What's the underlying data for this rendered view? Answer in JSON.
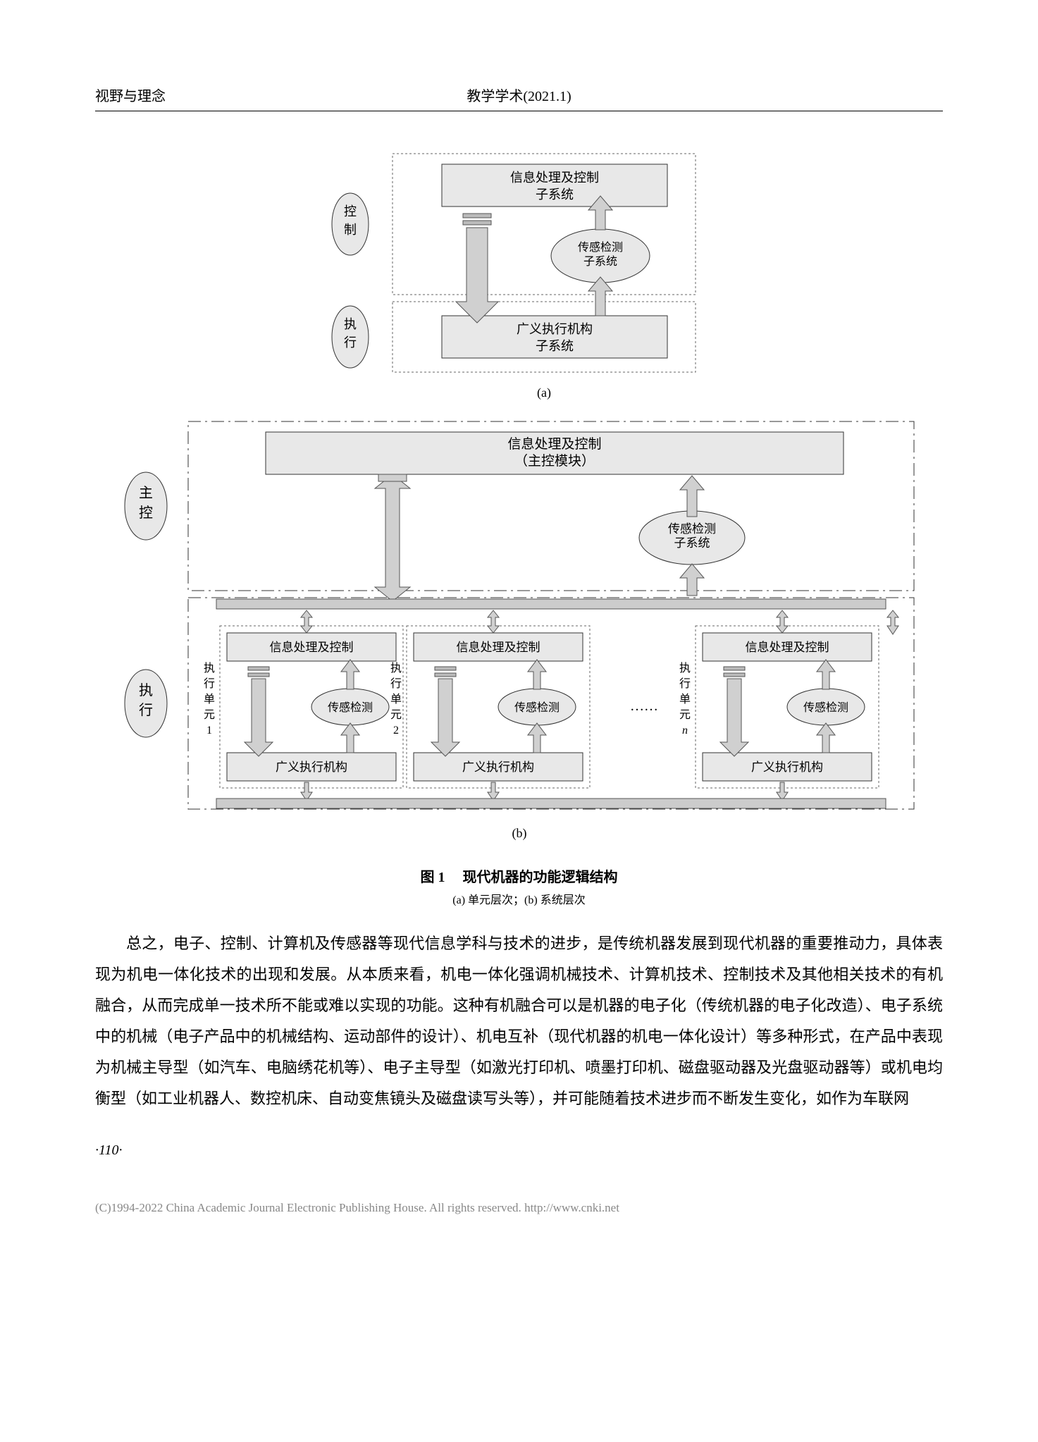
{
  "header": {
    "left": "视野与理念",
    "center": "教学学术(2021.1)"
  },
  "diagram_a": {
    "label": "(a)",
    "colors": {
      "box_fill": "#e8e8e8",
      "box_stroke": "#333333",
      "arrow_fill": "#d0d0d0",
      "arrow_stroke": "#555555",
      "dotted_stroke": "#666666",
      "ellipse_fill": "#e8e8e8",
      "text": "#000000"
    },
    "side_labels": {
      "control": "控制",
      "execute": "执行"
    },
    "nodes": {
      "info_control": {
        "line1": "信息处理及控制",
        "line2": "子系统"
      },
      "sensor": {
        "line1": "传感检测",
        "line2": "子系统"
      },
      "actuator": {
        "line1": "广义执行机构",
        "line2": "子系统"
      }
    }
  },
  "diagram_b": {
    "label": "(b)",
    "colors": {
      "box_fill": "#e8e8e8",
      "box_stroke": "#333333",
      "arrow_fill": "#d0d0d0",
      "arrow_stroke": "#555555",
      "dashdot_stroke": "#333333",
      "dotted_stroke": "#666666",
      "ellipse_fill": "#e8e8e8",
      "bus_fill": "#cccccc",
      "text": "#000000"
    },
    "side_labels": {
      "master": "主控",
      "execute": "执行"
    },
    "master_node": {
      "line1": "信息处理及控制",
      "line2": "（主控模块）"
    },
    "sensor_node": {
      "line1": "传感检测",
      "line2": "子系统"
    },
    "units": [
      {
        "label_prefix": "执行单元",
        "label_suffix": "1",
        "info": "信息处理及控制",
        "sensor": "传感检测",
        "actuator": "广义执行机构"
      },
      {
        "label_prefix": "执行单元",
        "label_suffix": "2",
        "info": "信息处理及控制",
        "sensor": "传感检测",
        "actuator": "广义执行机构"
      },
      {
        "label_prefix": "执行单元",
        "label_suffix": "n",
        "info": "信息处理及控制",
        "sensor": "传感检测",
        "actuator": "广义执行机构"
      }
    ],
    "ellipsis": "……"
  },
  "figure": {
    "title": "图 1  　现代机器的功能逻辑结构",
    "subtitle": "(a) 单元层次；(b) 系统层次"
  },
  "body": "总之，电子、控制、计算机及传感器等现代信息学科与技术的进步，是传统机器发展到现代机器的重要推动力，具体表现为机电一体化技术的出现和发展。从本质来看，机电一体化强调机械技术、计算机技术、控制技术及其他相关技术的有机融合，从而完成单一技术所不能或难以实现的功能。这种有机融合可以是机器的电子化（传统机器的电子化改造）、电子系统中的机械（电子产品中的机械结构、运动部件的设计）、机电互补（现代机器的机电一体化设计）等多种形式，在产品中表现为机械主导型（如汽车、电脑绣花机等）、电子主导型（如激光打印机、喷墨打印机、磁盘驱动器及光盘驱动器等）或机电均衡型（如工业机器人、数控机床、自动变焦镜头及磁盘读写头等），并可能随着技术进步而不断发生变化，如作为车联网",
  "page_number": "·110·",
  "footer": {
    "text": "(C)1994-2022 China Academic Journal Electronic Publishing House. All rights reserved.    ",
    "url": "http://www.cnki.net"
  }
}
